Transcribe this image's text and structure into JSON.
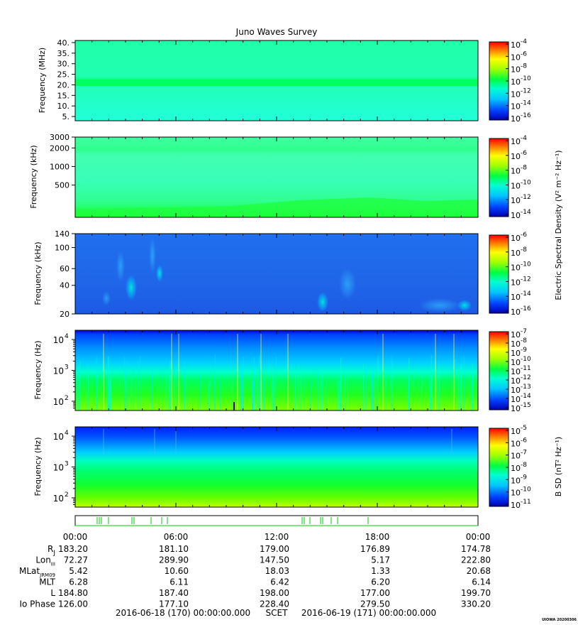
{
  "title": "Juno Waves Survey",
  "colors": {
    "colormap": [
      "#0000b4",
      "#0040ff",
      "#00c8ff",
      "#00ffd0",
      "#00ff40",
      "#a0ff00",
      "#ffff00",
      "#ff8000",
      "#ff0000"
    ],
    "ephemeris_marks": "#00cc00"
  },
  "chart_data": [
    {
      "type": "heatmap",
      "ylabel": "Frequency (MHz)",
      "y_scale": "linear",
      "ylim": [
        3,
        41
      ],
      "ytick_labels": [
        "40.",
        "35.",
        "30.",
        "25.",
        "20.",
        "15.",
        "10.",
        "5."
      ],
      "ytick_values": [
        40,
        35,
        30,
        25,
        20,
        15,
        10,
        5
      ],
      "colorbar_scale": "log",
      "colorbar_exponents": [
        -4,
        -6,
        -8,
        -10,
        -12,
        -14,
        -16
      ],
      "band_features": [
        {
          "frequency": 21,
          "description": "narrow band"
        }
      ]
    },
    {
      "type": "heatmap",
      "ylabel": "Frequency (kHz)",
      "y_scale": "log",
      "ylim": [
        150,
        3000
      ],
      "ytick_labels": [
        "3000",
        "2000",
        "1000",
        "500"
      ],
      "ytick_values": [
        3000,
        2000,
        1000,
        500
      ],
      "colorbar_scale": "log",
      "colorbar_exponents": [
        -4,
        -6,
        -8,
        -10,
        -12,
        -14
      ]
    },
    {
      "type": "heatmap",
      "ylabel": "Frequency (kHz)",
      "y_scale": "log",
      "ylim": [
        20,
        140
      ],
      "ytick_labels": [
        "140",
        "100",
        "60",
        "40",
        "20"
      ],
      "ytick_values": [
        140,
        100,
        60,
        40,
        20
      ],
      "colorbar_scale": "log",
      "colorbar_exponents": [
        -6,
        -8,
        -10,
        -12,
        -14,
        -16
      ]
    },
    {
      "type": "heatmap",
      "ylabel": "Frequency (Hz)",
      "y_scale": "log",
      "ylim": [
        50,
        20000
      ],
      "ytick_base": [
        "10",
        "10",
        "10"
      ],
      "ytick_exponents": [
        4,
        3,
        2
      ],
      "colorbar_scale": "log",
      "colorbar_exponents": [
        -7,
        -8,
        -9,
        -10,
        -11,
        -12,
        -13,
        -14,
        -15
      ]
    },
    {
      "type": "heatmap",
      "ylabel": "Frequency (Hz)",
      "y_scale": "log",
      "ylim": [
        50,
        20000
      ],
      "ytick_base": [
        "10",
        "10",
        "10"
      ],
      "ytick_exponents": [
        4,
        3,
        2
      ],
      "colorbar_scale": "log",
      "colorbar_exponents": [
        -5,
        -6,
        -7,
        -8,
        -9,
        -10,
        -11
      ]
    }
  ],
  "colorbar_labels": {
    "electric": "Electric Spectral Density (V² m⁻² Hz⁻¹)",
    "magnetic": "B SD (nT² Hz⁻¹)"
  },
  "colorbar_base": "10",
  "ephemeris": {
    "time_labels": [
      "00:00",
      "06:00",
      "12:00",
      "18:00",
      "00:00"
    ],
    "rows": [
      {
        "label": "Rj",
        "values": [
          "183.20",
          "181.10",
          "179.00",
          "176.89",
          "174.78"
        ]
      },
      {
        "label": "Lon III",
        "values": [
          "72.27",
          "289.90",
          "147.50",
          "5.17",
          "222.80"
        ]
      },
      {
        "label": "MLat JRM09",
        "values": [
          "5.42",
          "10.60",
          "18.03",
          "1.33",
          "20.68"
        ]
      },
      {
        "label": "MLT",
        "values": [
          "6.28",
          "6.11",
          "6.42",
          "6.20",
          "6.14"
        ]
      },
      {
        "label": "L",
        "values": [
          "184.80",
          "187.40",
          "198.00",
          "177.00",
          "199.70"
        ]
      },
      {
        "label": "Io Phase",
        "values": [
          "126.00",
          "177.10",
          "228.40",
          "279.50",
          "330.20"
        ]
      }
    ]
  },
  "footer": {
    "start": "2016-06-18 (170) 00:00:00.000",
    "scet": "SCET",
    "end": "2016-06-19 (171) 00:00:00.000"
  },
  "stamp": "UIOWA 20200306"
}
